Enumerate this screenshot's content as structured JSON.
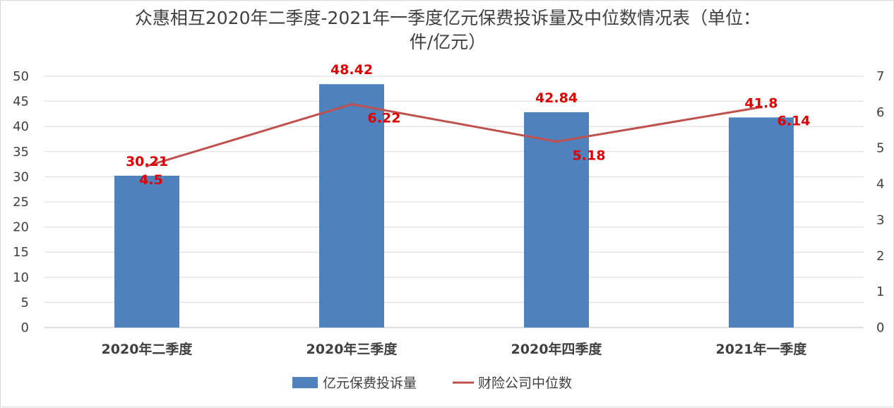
{
  "chart_data": {
    "type": "bar",
    "title_line1": "众惠相互2020年二季度-2021年一季度亿元保费投诉量及中位数情况表（单位：",
    "title_line2": "件/亿元）",
    "categories": [
      "2020年二季度",
      "2020年三季度",
      "2020年四季度",
      "2021年一季度"
    ],
    "series": [
      {
        "name": "亿元保费投诉量",
        "type": "bar",
        "axis": "left",
        "color": "#4f81bd",
        "values": [
          30.21,
          48.42,
          42.84,
          41.8
        ],
        "labels": [
          "30.21",
          "48.42",
          "42.84",
          "41.8"
        ]
      },
      {
        "name": "财险公司中位数",
        "type": "line",
        "axis": "right",
        "color": "#c0504d",
        "values": [
          4.5,
          6.22,
          5.18,
          6.14
        ],
        "labels": [
          "4.5",
          "6.22",
          "5.18",
          "6.14"
        ]
      }
    ],
    "y_left": {
      "min": 0,
      "max": 50,
      "step": 5
    },
    "y_right": {
      "min": 0,
      "max": 7,
      "step": 1
    },
    "grid": true,
    "legend_position": "bottom",
    "data_label_color": "#e00000"
  }
}
